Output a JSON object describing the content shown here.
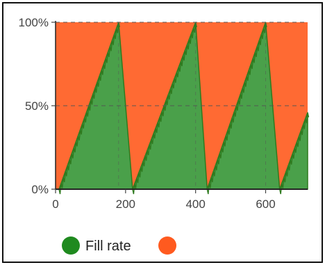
{
  "chart_data": {
    "type": "area",
    "title": "",
    "xlabel": "",
    "ylabel": "",
    "xlim": [
      0,
      720
    ],
    "ylim": [
      0,
      100
    ],
    "x_ticks": [
      0,
      200,
      400,
      600
    ],
    "x_tick_labels": [
      "0",
      "200",
      "400",
      "600"
    ],
    "y_ticks": [
      0,
      50,
      100
    ],
    "y_tick_labels": [
      "0%",
      "50%",
      "100%"
    ],
    "grid": {
      "horizontal": true,
      "style": "dashed",
      "vertical_at_drops": true
    },
    "legend_position": "bottom-left",
    "colors": {
      "fill": "#4aa04a",
      "fill_stroke": "#2f7a1f",
      "background_area": "#ff6a33",
      "legend_fill": "#1f8a1f"
    },
    "series": [
      {
        "name": "Fill rate",
        "x": [
          0,
          10,
          180,
          220,
          400,
          433,
          600,
          640,
          720
        ],
        "values": [
          0,
          0,
          100,
          0,
          100,
          0,
          100,
          0,
          46
        ]
      },
      {
        "name": "",
        "values": [
          100,
          100,
          100,
          100,
          100,
          100,
          100,
          100,
          100
        ]
      }
    ]
  },
  "legend": {
    "items": [
      {
        "label": "Fill rate",
        "color": "#1f8a1f"
      },
      {
        "label": "",
        "color": "#ff5a1f"
      }
    ]
  }
}
